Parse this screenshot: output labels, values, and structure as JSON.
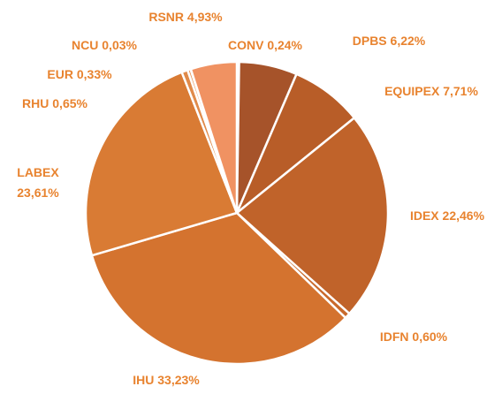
{
  "chart_data": {
    "type": "pie",
    "categories": [
      "CONV",
      "DPBS",
      "EQUIPEX",
      "IDEX",
      "IDFN",
      "IHU",
      "LABEX",
      "RHU",
      "EUR",
      "NCU",
      "RSNR"
    ],
    "values": [
      0.24,
      6.22,
      7.71,
      22.46,
      0.6,
      33.23,
      23.61,
      0.65,
      0.33,
      0.03,
      4.93
    ],
    "value_labels": [
      "0,24%",
      "6,22%",
      "7,71%",
      "22,46%",
      "0,60%",
      "33,23%",
      "23,61%",
      "0,65%",
      "0,33%",
      "0,03%",
      "4,93%"
    ],
    "colors": [
      "#8e4220",
      "#a6532a",
      "#b85d28",
      "#c0632a",
      "#c96a2c",
      "#d4732f",
      "#d97b34",
      "#e08a4a",
      "#e8955a",
      "#ec9b62",
      "#f09262"
    ],
    "label_color": "#e8832f"
  }
}
